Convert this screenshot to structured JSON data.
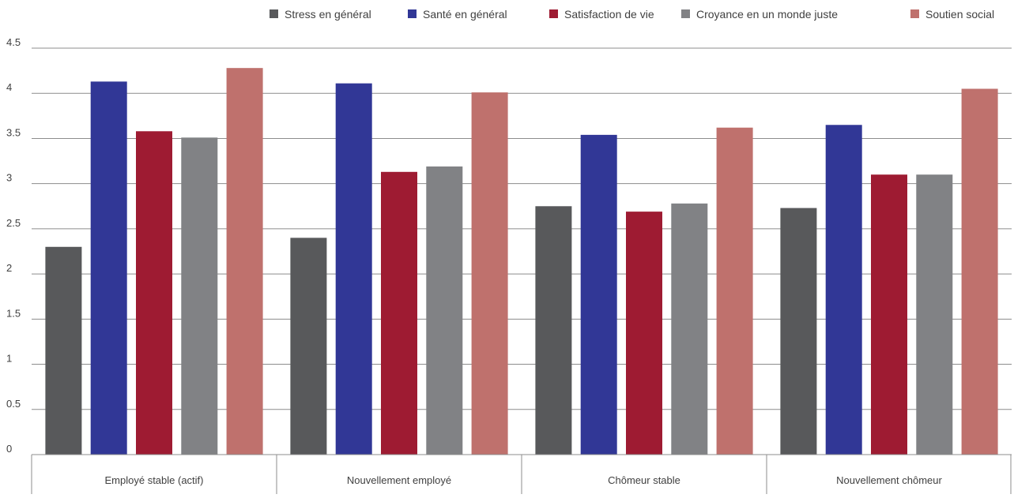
{
  "chart_data": {
    "type": "bar",
    "categories": [
      "Employé stable (actif)",
      "Nouvellement employé",
      "Chômeur stable",
      "Nouvellement chômeur"
    ],
    "series": [
      {
        "name": "Stress en général",
        "color": "#58595b",
        "values": [
          2.3,
          2.4,
          2.75,
          2.73
        ]
      },
      {
        "name": "Santé en général",
        "color": "#313796",
        "values": [
          4.13,
          4.11,
          3.54,
          3.65
        ]
      },
      {
        "name": "Satisfaction de vie",
        "color": "#9e1b32",
        "values": [
          3.58,
          3.13,
          2.69,
          3.1
        ]
      },
      {
        "name": "Croyance en un monde juste",
        "color": "#818285",
        "values": [
          3.51,
          3.19,
          2.78,
          3.1
        ]
      },
      {
        "name": "Soutien social",
        "color": "#bf716d",
        "values": [
          4.28,
          4.01,
          3.62,
          4.05
        ]
      }
    ],
    "y_ticks": [
      "0",
      "0.5",
      "1",
      "1.5",
      "2",
      "2.5",
      "3",
      "3.5",
      "4",
      "4.5"
    ],
    "ylim": [
      0,
      4.5
    ],
    "grid": true,
    "legend_position": "top-right",
    "title": "",
    "xlabel": "",
    "ylabel": ""
  }
}
